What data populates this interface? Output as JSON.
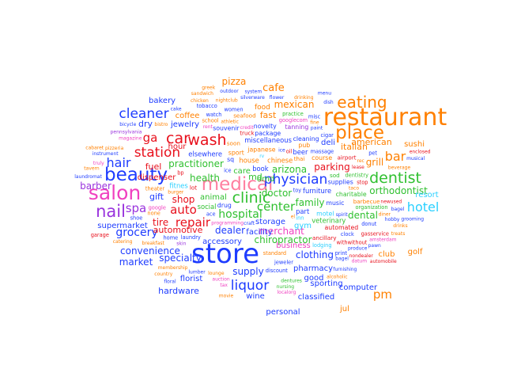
{
  "colors": {
    "orange": "#ff8000",
    "red": "#e8101c",
    "blue": "#1e3cff",
    "green": "#30c030",
    "purple": "#9933dd",
    "cyan": "#2ad0ff",
    "magenta": "#f040c0",
    "light_orange": "#ffb060",
    "pink": "#ff7fa0"
  },
  "words": [
    {
      "text": "restaurant",
      "color": "orange",
      "weight": 100
    },
    {
      "text": "store",
      "color": "blue",
      "weight": 100
    },
    {
      "text": "salon",
      "color": "magenta",
      "weight": 62
    },
    {
      "text": "beauty",
      "color": "blue",
      "weight": 62
    },
    {
      "text": "medical",
      "color": "pink",
      "weight": 62
    },
    {
      "text": "place",
      "color": "orange",
      "weight": 58
    },
    {
      "text": "nail",
      "color": "purple",
      "weight": 55
    },
    {
      "text": "eating",
      "color": "orange",
      "weight": 55
    },
    {
      "text": "dentist",
      "color": "green",
      "weight": 48
    },
    {
      "text": "car",
      "color": "red",
      "weight": 44
    },
    {
      "text": "wash",
      "color": "red",
      "weight": 44
    },
    {
      "text": "clinic",
      "color": "green",
      "weight": 44
    },
    {
      "text": "physician",
      "color": "blue",
      "weight": 40
    },
    {
      "text": "liquor",
      "color": "blue",
      "weight": 40
    },
    {
      "text": "hotel",
      "color": "cyan",
      "weight": 40
    },
    {
      "text": "bar",
      "color": "orange",
      "weight": 40
    },
    {
      "text": "cleaner",
      "color": "blue",
      "weight": 38
    },
    {
      "text": "station",
      "color": "red",
      "weight": 38
    },
    {
      "text": "hair",
      "color": "blue",
      "weight": 38
    },
    {
      "text": "spa",
      "color": "purple",
      "weight": 38
    },
    {
      "text": "auto",
      "color": "red",
      "weight": 38
    },
    {
      "text": "repair",
      "color": "red",
      "weight": 36
    },
    {
      "text": "center",
      "color": "green",
      "weight": 36
    },
    {
      "text": "pm",
      "color": "orange",
      "weight": 36
    },
    {
      "text": "ga",
      "color": "red",
      "weight": 36
    },
    {
      "text": "hospital",
      "color": "green",
      "weight": 34
    },
    {
      "text": "grocery",
      "color": "blue",
      "weight": 34
    },
    {
      "text": "cafe",
      "color": "orange",
      "weight": 32
    },
    {
      "text": "pizza",
      "color": "orange",
      "weight": 30
    },
    {
      "text": "mexican",
      "color": "orange",
      "weight": 30
    },
    {
      "text": "arizona",
      "color": "green",
      "weight": 30
    },
    {
      "text": "grill",
      "color": "orange",
      "weight": 30
    },
    {
      "text": "parking",
      "color": "red",
      "weight": 30
    },
    {
      "text": "orthodontist",
      "color": "green",
      "weight": 30
    },
    {
      "text": "dealer",
      "color": "blue",
      "weight": 30
    },
    {
      "text": "chiropractor",
      "color": "green",
      "weight": 30
    },
    {
      "text": "supply",
      "color": "blue",
      "weight": 30
    },
    {
      "text": "convenience",
      "color": "blue",
      "weight": 30
    },
    {
      "text": "market",
      "color": "blue",
      "weight": 28
    },
    {
      "text": "specialty",
      "color": "blue",
      "weight": 28
    },
    {
      "text": "practitioner",
      "color": "green",
      "weight": 28
    },
    {
      "text": "health",
      "color": "green",
      "weight": 28
    },
    {
      "text": "doctor",
      "color": "green",
      "weight": 28
    },
    {
      "text": "family",
      "color": "green",
      "weight": 28
    },
    {
      "text": "barber",
      "color": "purple",
      "weight": 28
    },
    {
      "text": "shop",
      "color": "red",
      "weight": 28
    },
    {
      "text": "tire",
      "color": "red",
      "weight": 28
    },
    {
      "text": "dental",
      "color": "green",
      "weight": 28
    },
    {
      "text": "merchant",
      "color": "magenta",
      "weight": 28
    },
    {
      "text": "clothing",
      "color": "blue",
      "weight": 28
    },
    {
      "text": "fuel",
      "color": "red",
      "weight": 26
    },
    {
      "text": "dry",
      "color": "blue",
      "weight": 26
    },
    {
      "text": "italian",
      "color": "orange",
      "weight": 26
    },
    {
      "text": "american",
      "color": "orange",
      "weight": 26
    },
    {
      "text": "gift",
      "color": "blue",
      "weight": 26
    },
    {
      "text": "automotive",
      "color": "red",
      "weight": 26
    },
    {
      "text": "hardware",
      "color": "blue",
      "weight": 26
    },
    {
      "text": "fast",
      "color": "orange",
      "weight": 26
    },
    {
      "text": "md",
      "color": "green",
      "weight": 26
    },
    {
      "text": "dmd",
      "color": "green",
      "weight": 24
    },
    {
      "text": "resort",
      "color": "cyan",
      "weight": 24
    },
    {
      "text": "wine",
      "color": "blue",
      "weight": 24
    },
    {
      "text": "deli",
      "color": "blue",
      "weight": 24
    },
    {
      "text": "care",
      "color": "green",
      "weight": 24
    },
    {
      "text": "bakery",
      "color": "blue",
      "weight": 22
    },
    {
      "text": "dispenser",
      "color": "red",
      "weight": 22
    },
    {
      "text": "supermarket",
      "color": "blue",
      "weight": 22
    },
    {
      "text": "florist",
      "color": "blue",
      "weight": 22
    },
    {
      "text": "animal",
      "color": "green",
      "weight": 22
    },
    {
      "text": "storage",
      "color": "blue",
      "weight": 22
    },
    {
      "text": "accessory",
      "color": "blue",
      "weight": 22
    },
    {
      "text": "facility",
      "color": "blue",
      "weight": 22
    },
    {
      "text": "business",
      "color": "magenta",
      "weight": 22
    },
    {
      "text": "classified",
      "color": "blue",
      "weight": 22
    },
    {
      "text": "pharmacy",
      "color": "blue",
      "weight": 20
    },
    {
      "text": "computer",
      "color": "blue",
      "weight": 20
    },
    {
      "text": "jewelry",
      "color": "blue",
      "weight": 20
    },
    {
      "text": "coffee",
      "color": "orange",
      "weight": 20
    },
    {
      "text": "hour",
      "color": "red",
      "weight": 20
    },
    {
      "text": "gym",
      "color": "cyan",
      "weight": 20
    },
    {
      "text": "sushi",
      "color": "orange",
      "weight": 20
    },
    {
      "text": "club",
      "color": "orange",
      "weight": 20
    },
    {
      "text": "golf",
      "color": "orange",
      "weight": 20
    },
    {
      "text": "good",
      "color": "blue",
      "weight": 20
    },
    {
      "text": "sporting",
      "color": "blue",
      "weight": 20
    },
    {
      "text": "personal",
      "color": "blue",
      "weight": 20
    },
    {
      "text": "jul",
      "color": "orange",
      "weight": 20
    },
    {
      "text": "food",
      "color": "orange",
      "weight": 18
    },
    {
      "text": "house",
      "color": "orange",
      "weight": 18
    },
    {
      "text": "chinese",
      "color": "orange",
      "weight": 18
    },
    {
      "text": "japanese",
      "color": "orange",
      "weight": 16
    },
    {
      "text": "part",
      "color": "blue",
      "weight": 18
    },
    {
      "text": "miscellaneous",
      "color": "blue",
      "weight": 18
    },
    {
      "text": "elsewhere",
      "color": "blue",
      "weight": 18
    },
    {
      "text": "furniture",
      "color": "blue",
      "weight": 18
    },
    {
      "text": "book",
      "color": "blue",
      "weight": 18
    },
    {
      "text": "drug",
      "color": "blue",
      "weight": 16
    },
    {
      "text": "beer",
      "color": "blue",
      "weight": 18
    },
    {
      "text": "package",
      "color": "blue",
      "weight": 16
    },
    {
      "text": "veterinary",
      "color": "green",
      "weight": 18
    },
    {
      "text": "social",
      "color": "green",
      "weight": 18
    },
    {
      "text": "fitnes",
      "color": "cyan",
      "weight": 18
    },
    {
      "text": "motel",
      "color": "cyan",
      "weight": 16
    },
    {
      "text": "course",
      "color": "orange",
      "weight": 16
    },
    {
      "text": "charitable",
      "color": "green",
      "weight": 16
    },
    {
      "text": "pub",
      "color": "orange",
      "weight": 16
    },
    {
      "text": "sport",
      "color": "orange",
      "weight": 16
    },
    {
      "text": "music",
      "color": "blue",
      "weight": 16
    },
    {
      "text": "supplies",
      "color": "blue",
      "weight": 16
    },
    {
      "text": "sq",
      "color": "blue",
      "weight": 16
    },
    {
      "text": "souvenir",
      "color": "blue",
      "weight": 16
    },
    {
      "text": "novelty",
      "color": "blue",
      "weight": 16
    },
    {
      "text": "tanning",
      "color": "purple",
      "weight": 16
    },
    {
      "text": "cleaning",
      "color": "blue",
      "weight": 16
    },
    {
      "text": "automated",
      "color": "red",
      "weight": 16
    },
    {
      "text": "truck",
      "color": "red",
      "weight": 14
    },
    {
      "text": "ancillary",
      "color": "red",
      "weight": 14
    },
    {
      "text": "sod",
      "color": "green",
      "weight": 14
    },
    {
      "text": "lot",
      "color": "red",
      "weight": 14
    },
    {
      "text": "soon",
      "color": "orange",
      "weight": 14
    },
    {
      "text": "airport",
      "color": "red",
      "weight": 14
    },
    {
      "text": "barbecue",
      "color": "orange",
      "weight": 14
    },
    {
      "text": "seafood",
      "color": "orange",
      "weight": 14
    },
    {
      "text": "thai",
      "color": "orange",
      "weight": 14
    },
    {
      "text": "lodging",
      "color": "cyan",
      "weight": 12
    },
    {
      "text": "inn",
      "color": "cyan",
      "weight": 12
    },
    {
      "text": "theater",
      "color": "orange",
      "weight": 12
    },
    {
      "text": "google",
      "color": "magenta",
      "weight": 12
    },
    {
      "text": "googlecom",
      "color": "magenta",
      "weight": 12
    },
    {
      "text": "standard",
      "color": "orange",
      "weight": 12
    },
    {
      "text": "home",
      "color": "blue",
      "weight": 12
    },
    {
      "text": "organization",
      "color": "green",
      "weight": 12
    },
    {
      "text": "dentistry",
      "color": "green",
      "weight": 12
    },
    {
      "text": "practice",
      "color": "green",
      "weight": 12
    },
    {
      "text": "school",
      "color": "orange",
      "weight": 12
    },
    {
      "text": "massage",
      "color": "blue",
      "weight": 12
    },
    {
      "text": "oil",
      "color": "red",
      "weight": 12
    },
    {
      "text": "ice",
      "color": "blue",
      "weight": 12
    },
    {
      "text": "watch",
      "color": "blue",
      "weight": 12
    },
    {
      "text": "clock",
      "color": "blue",
      "weight": 12
    },
    {
      "text": "jeweler",
      "color": "blue",
      "weight": 12
    },
    {
      "text": "laundry",
      "color": "blue",
      "weight": 12
    },
    {
      "text": "donut",
      "color": "blue",
      "weight": 12
    },
    {
      "text": "stop",
      "color": "red",
      "weight": 12
    },
    {
      "text": "bp",
      "color": "red",
      "weight": 12
    },
    {
      "text": "withwithout",
      "color": "red",
      "weight": 12
    },
    {
      "text": "gasservice",
      "color": "red",
      "weight": 12
    },
    {
      "text": "ace",
      "color": "blue",
      "weight": 12
    },
    {
      "text": "toy",
      "color": "blue",
      "weight": 12
    },
    {
      "text": "shoe",
      "color": "blue",
      "weight": 12
    },
    {
      "text": "discount",
      "color": "blue",
      "weight": 12
    },
    {
      "text": "pet",
      "color": "blue",
      "weight": 12
    },
    {
      "text": "misc",
      "color": "blue",
      "weight": 12
    },
    {
      "text": "cigar",
      "color": "blue",
      "weight": 12
    },
    {
      "text": "tobacco",
      "color": "blue",
      "weight": 12
    },
    {
      "text": "print",
      "color": "blue",
      "weight": 12
    },
    {
      "text": "women",
      "color": "blue",
      "weight": 12
    },
    {
      "text": "none",
      "color": "orange",
      "weight": 12
    },
    {
      "text": "skin",
      "color": "purple",
      "weight": 10
    },
    {
      "text": "bistro",
      "color": "orange",
      "weight": 10
    },
    {
      "text": "breakfast",
      "color": "orange",
      "weight": 10
    },
    {
      "text": "burger",
      "color": "orange",
      "weight": 10
    },
    {
      "text": "diner",
      "color": "orange",
      "weight": 10
    },
    {
      "text": "lounge",
      "color": "orange",
      "weight": 10
    },
    {
      "text": "nightclub",
      "color": "orange",
      "weight": 10
    },
    {
      "text": "taco",
      "color": "orange",
      "weight": 10
    },
    {
      "text": "magazine",
      "color": "magenta",
      "weight": 10
    },
    {
      "text": "athletic",
      "color": "orange",
      "weight": 10
    },
    {
      "text": "membership",
      "color": "orange",
      "weight": 10
    },
    {
      "text": "programming",
      "color": "magenta",
      "weight": 10
    },
    {
      "text": "newused",
      "color": "red",
      "weight": 10
    },
    {
      "text": "bagel",
      "color": "blue",
      "weight": 10
    },
    {
      "text": "silverware",
      "color": "blue",
      "weight": 10
    },
    {
      "text": "dentures",
      "color": "green",
      "weight": 10
    },
    {
      "text": "flower",
      "color": "blue",
      "weight": 10
    },
    {
      "text": "produce",
      "color": "blue",
      "weight": 10
    },
    {
      "text": "hobby",
      "color": "blue",
      "weight": 10
    },
    {
      "text": "pawn",
      "color": "blue",
      "weight": 10
    },
    {
      "text": "lumber",
      "color": "blue",
      "weight": 10
    },
    {
      "text": "furnishing",
      "color": "blue",
      "weight": 10
    },
    {
      "text": "instrument",
      "color": "blue",
      "weight": 10
    },
    {
      "text": "auction",
      "color": "magenta",
      "weight": 10
    },
    {
      "text": "outdoor",
      "color": "blue",
      "weight": 10
    },
    {
      "text": "nondealer",
      "color": "red",
      "weight": 10
    },
    {
      "text": "lease",
      "color": "red",
      "weight": 10
    },
    {
      "text": "pennsylvania",
      "color": "purple",
      "weight": 10
    },
    {
      "text": "nursing",
      "color": "green",
      "weight": 10
    },
    {
      "text": "amsterdam",
      "color": "magenta",
      "weight": 10
    },
    {
      "text": "pizzeria",
      "color": "orange",
      "weight": 10
    },
    {
      "text": "chicken",
      "color": "orange",
      "weight": 10
    },
    {
      "text": "sandwich",
      "color": "orange",
      "weight": 10
    },
    {
      "text": "catering",
      "color": "orange",
      "weight": 10
    },
    {
      "text": "drinking",
      "color": "orange",
      "weight": 10
    },
    {
      "text": "alcoholic",
      "color": "orange",
      "weight": 10
    },
    {
      "text": "beverage",
      "color": "orange",
      "weight": 10
    },
    {
      "text": "tavern",
      "color": "orange",
      "weight": 10
    },
    {
      "text": "bagel",
      "color": "blue",
      "weight": 10
    },
    {
      "text": "cake",
      "color": "blue",
      "weight": 10
    },
    {
      "text": "drinks",
      "color": "orange",
      "weight": 10
    },
    {
      "text": "garage",
      "color": "red",
      "weight": 12
    },
    {
      "text": "automobile",
      "color": "red",
      "weight": 10
    },
    {
      "text": "greek",
      "color": "orange",
      "weight": 10
    },
    {
      "text": "tax",
      "color": "magenta",
      "weight": 10
    },
    {
      "text": "credit",
      "color": "magenta",
      "weight": 10
    },
    {
      "text": "rec",
      "color": "orange",
      "weight": 10
    },
    {
      "text": "country",
      "color": "orange",
      "weight": 10
    },
    {
      "text": "dish",
      "color": "blue",
      "weight": 10
    },
    {
      "text": "system",
      "color": "blue",
      "weight": 10
    },
    {
      "text": "bicycle",
      "color": "blue",
      "weight": 10
    },
    {
      "text": "localorg",
      "color": "magenta",
      "weight": 10
    },
    {
      "text": "datum",
      "color": "magenta",
      "weight": 10
    },
    {
      "text": "movie",
      "color": "orange",
      "weight": 10
    },
    {
      "text": "musical",
      "color": "blue",
      "weight": 10
    },
    {
      "text": "grooming",
      "color": "blue",
      "weight": 10
    },
    {
      "text": "spirit",
      "color": "blue",
      "weight": 10
    },
    {
      "text": "menu",
      "color": "blue",
      "weight": 10
    },
    {
      "text": "truly",
      "color": "magenta",
      "weight": 10
    },
    {
      "text": "floral",
      "color": "blue",
      "weight": 10
    },
    {
      "text": "craft",
      "color": "blue",
      "weight": 10
    },
    {
      "text": "paint",
      "color": "blue",
      "weight": 10
    },
    {
      "text": "treats",
      "color": "orange",
      "weight": 10
    },
    {
      "text": "enclosed",
      "color": "red",
      "weight": 10
    },
    {
      "text": "laundromat",
      "color": "blue",
      "weight": 10
    },
    {
      "text": "cabaret",
      "color": "orange",
      "weight": 10
    },
    {
      "text": "el",
      "color": "orange",
      "weight": 10
    },
    {
      "text": "rv",
      "color": "cyan",
      "weight": 10
    },
    {
      "text": "rent",
      "color": "magenta",
      "weight": 10
    },
    {
      "text": "fine",
      "color": "orange",
      "weight": 10
    },
    {
      "text": "ice",
      "color": "blue",
      "weight": 10
    }
  ]
}
